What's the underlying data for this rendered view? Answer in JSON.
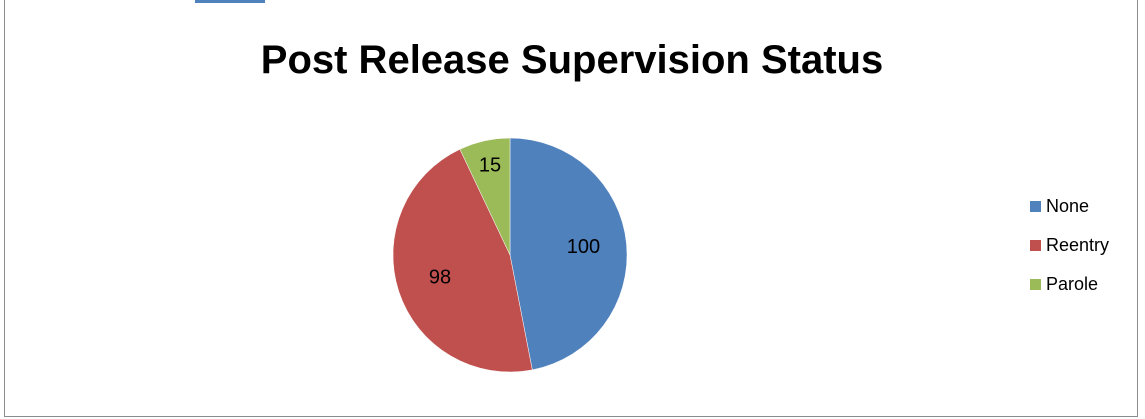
{
  "chart_data": {
    "type": "pie",
    "title": "Post Release Supervision Status",
    "categories": [
      "None",
      "Reentry",
      "Parole"
    ],
    "values": [
      100,
      98,
      15
    ],
    "colors": [
      "#4f81bd",
      "#c0504d",
      "#9bbb59"
    ],
    "legend_position": "right"
  }
}
